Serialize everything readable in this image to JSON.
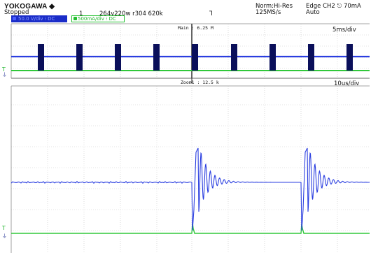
{
  "header": {
    "brand": "YOKOGAWA ◆",
    "status": "Stopped",
    "record_number": "1",
    "record_info": "264v220w r304 620k",
    "trigger_mode_symbol": "Ꞁ",
    "acq_mode": "Norm:Hi-Res",
    "sample_rate": "125MS/s",
    "trigger_source": "Edge CH2 ⎋ 70mA",
    "trigger_mode": "Auto"
  },
  "channels": [
    {
      "id": "CH1",
      "label": "50.0 V/div ⁝ DC",
      "color": "#1a2cc8"
    },
    {
      "id": "CH2",
      "label": "500mA/div ⁝ DC",
      "color": "#22c02e"
    }
  ],
  "main_panel": {
    "top_label": "Main : 6.25 M",
    "timebase": "5ms/div"
  },
  "zoom_panel": {
    "top_label": "Zoom1 : 12.5 k",
    "timebase": "10us/div"
  },
  "colors": {
    "ch1": "#2a3ee0",
    "ch2": "#30c83a",
    "burst": "#0a0f5a",
    "grid": "#bdbdbd",
    "marker": "#1b2b90"
  }
}
